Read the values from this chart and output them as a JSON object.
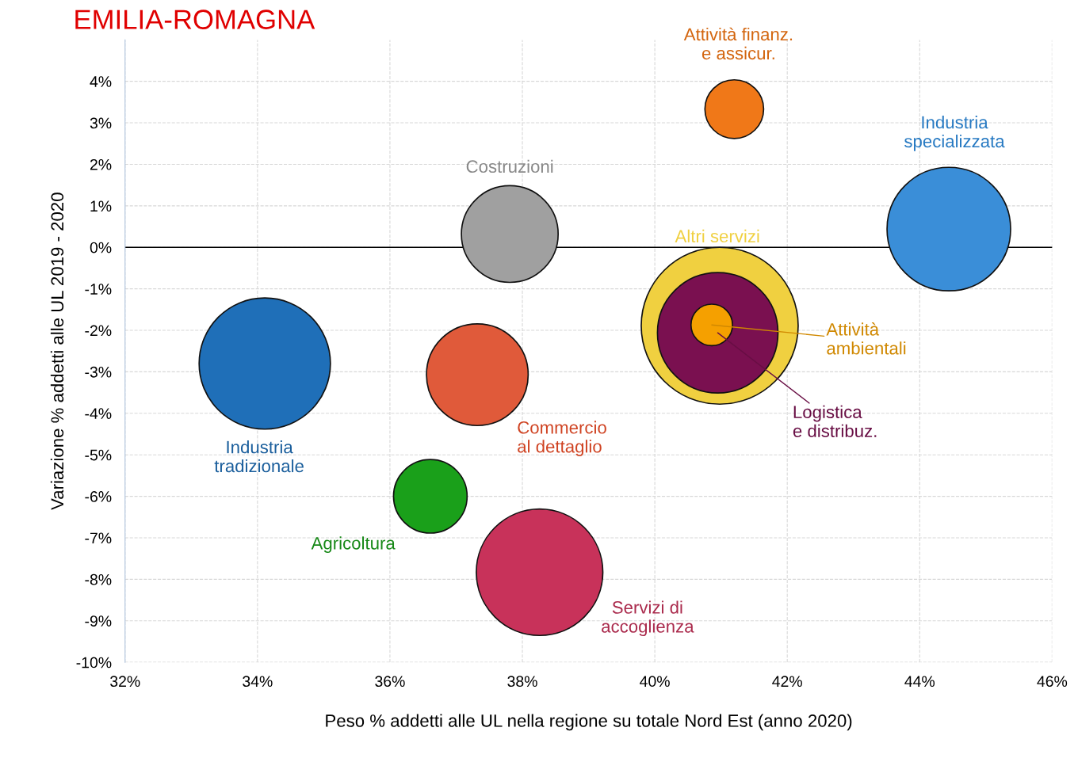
{
  "chart_data": {
    "type": "bubble",
    "title": "EMILIA-ROMAGNA",
    "xlabel": "Peso % addetti alle UL nella regione su totale Nord Est (anno 2020)",
    "ylabel": "Variazione % addetti alle UL 2019 - 2020",
    "xlim": [
      32,
      46
    ],
    "xticks": [
      {
        "value": 32,
        "label": "32%"
      },
      {
        "value": 34,
        "label": "34%"
      },
      {
        "value": 36,
        "label": "36%"
      },
      {
        "value": 38,
        "label": "38%"
      },
      {
        "value": 40,
        "label": "40%"
      },
      {
        "value": 42,
        "label": "42%"
      },
      {
        "value": 44,
        "label": "44%"
      },
      {
        "value": 46,
        "label": "46%"
      }
    ],
    "ylim": [
      -10,
      5
    ],
    "yticks": [
      {
        "value": -10,
        "label": "-10%"
      },
      {
        "value": -9,
        "label": "-9%"
      },
      {
        "value": -8,
        "label": "-8%"
      },
      {
        "value": -7,
        "label": "-7%"
      },
      {
        "value": -6,
        "label": "-6%"
      },
      {
        "value": -5,
        "label": "-5%"
      },
      {
        "value": -4,
        "label": "-4%"
      },
      {
        "value": -3,
        "label": "-3%"
      },
      {
        "value": -2,
        "label": "-2%"
      },
      {
        "value": -1,
        "label": "-1%"
      },
      {
        "value": 0,
        "label": "0%"
      },
      {
        "value": 1,
        "label": "1%"
      },
      {
        "value": 2,
        "label": "2%"
      },
      {
        "value": 3,
        "label": "3%"
      },
      {
        "value": 4,
        "label": "4%"
      }
    ],
    "grid": true,
    "legend": false,
    "ref_lines": [
      {
        "axis": "y",
        "value": 0,
        "color": "#000000"
      }
    ],
    "series": [
      {
        "name": "Altri servizi",
        "color": "#f0d040",
        "x": [
          40.98
        ],
        "values": [
          -1.89
        ],
        "sizes": [
          1
        ]
      },
      {
        "name": "Logistica\ne distribuz.",
        "color": "#7a1050",
        "x": [
          40.95
        ],
        "values": [
          -2.06
        ],
        "sizes": [
          0.59
        ]
      },
      {
        "name": "Attività\nambientali",
        "color": "#f5a000",
        "x": [
          40.86
        ],
        "values": [
          -1.87
        ],
        "sizes": [
          0.07
        ]
      },
      {
        "name": "Industria\ntradizionale",
        "color": "#1f6fb8",
        "x": [
          34.11
        ],
        "values": [
          -2.8
        ],
        "sizes": [
          0.7
        ]
      },
      {
        "name": "Costruzioni",
        "color": "#a0a0a0",
        "x": [
          37.81
        ],
        "values": [
          0.32
        ],
        "sizes": [
          0.38
        ]
      },
      {
        "name": "Commercio\nal dettaglio",
        "color": "#e05a3a",
        "x": [
          37.32
        ],
        "values": [
          -3.07
        ],
        "sizes": [
          0.42
        ]
      },
      {
        "name": "Agricoltura",
        "color": "#1aa01a",
        "x": [
          36.61
        ],
        "values": [
          -6.0
        ],
        "sizes": [
          0.22
        ]
      },
      {
        "name": "Servizi di\naccoglienza",
        "color": "#c8325a",
        "x": [
          38.26
        ],
        "values": [
          -7.83
        ],
        "sizes": [
          0.65
        ]
      },
      {
        "name": "Attività finanz.\ne assicur.",
        "color": "#f07818",
        "x": [
          41.2
        ],
        "values": [
          3.33
        ],
        "sizes": [
          0.14
        ]
      },
      {
        "name": "Industria\nspecializzata",
        "color": "#3a8ed8",
        "x": [
          44.44
        ],
        "values": [
          0.44
        ],
        "sizes": [
          0.62
        ]
      }
    ]
  }
}
